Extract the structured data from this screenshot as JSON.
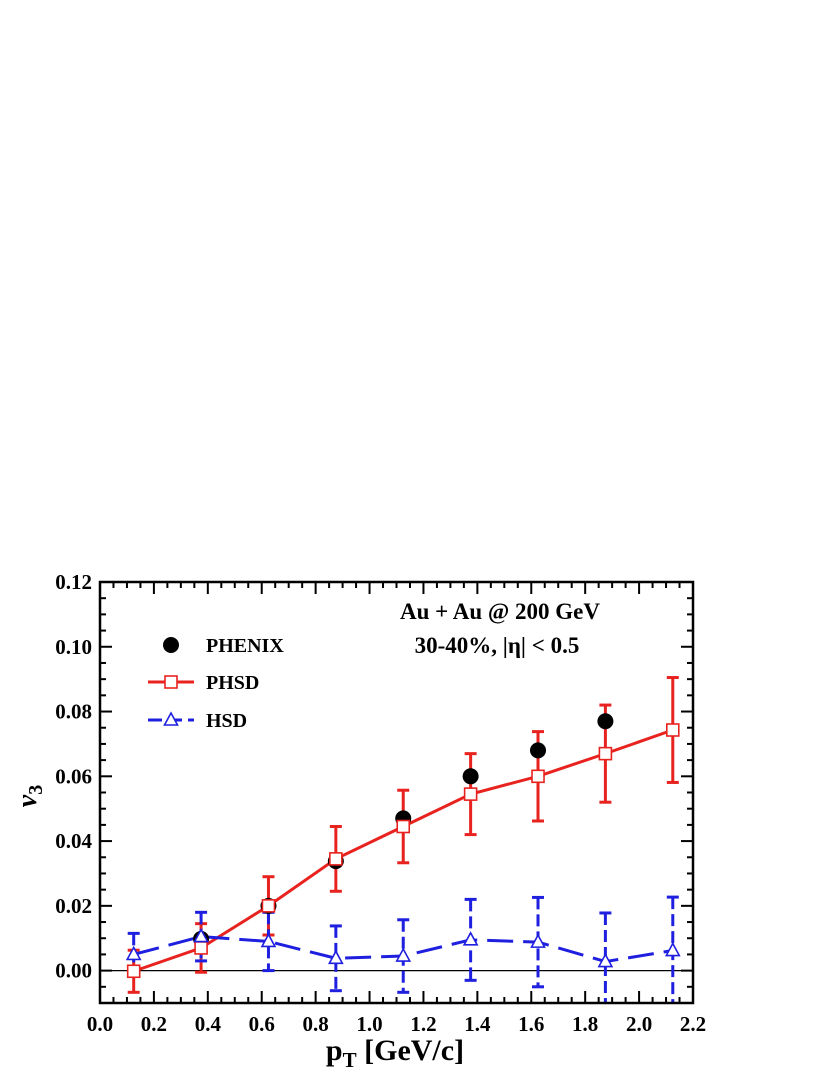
{
  "chart_data": {
    "type": "line",
    "title": "",
    "xlabel": "p",
    "xlabel_sub": "T",
    "xlabel_unit": " [GeV/c]",
    "ylabel": "v",
    "ylabel_sub": "3",
    "xlim": [
      0.0,
      2.2
    ],
    "ylim": [
      -0.01,
      0.12
    ],
    "xticks": [
      0.0,
      0.2,
      0.4,
      0.6,
      0.8,
      1.0,
      1.2,
      1.4,
      1.6,
      1.8,
      2.0,
      2.2
    ],
    "xtick_labels": [
      "0.0",
      "0.2",
      "0.4",
      "0.6",
      "0.8",
      "1.0",
      "1.2",
      "1.4",
      "1.6",
      "1.8",
      "2.0",
      "2.2"
    ],
    "yticks": [
      0.0,
      0.02,
      0.04,
      0.06,
      0.08,
      0.1,
      0.12
    ],
    "ytick_labels": [
      "0.00",
      "0.02",
      "0.04",
      "0.06",
      "0.08",
      "0.10",
      "0.12"
    ],
    "annotations": [
      "Au + Au @ 200 GeV",
      "30-40%, |η| < 0.5"
    ],
    "legend_position": "top-left",
    "series": [
      {
        "name": "PHENIX",
        "style": "markers",
        "marker": "filled-circle",
        "color": "#000000",
        "x": [
          0.375,
          0.625,
          0.875,
          1.125,
          1.375,
          1.625,
          1.875
        ],
        "y": [
          0.0098,
          0.02,
          0.0338,
          0.047,
          0.06,
          0.068,
          0.077
        ]
      },
      {
        "name": "PHSD",
        "style": "solid",
        "marker": "open-square",
        "color": "#e8231f",
        "x": [
          0.125,
          0.375,
          0.625,
          0.875,
          1.125,
          1.375,
          1.625,
          1.875,
          2.125
        ],
        "y": [
          -0.0002,
          0.007,
          0.02,
          0.0345,
          0.0445,
          0.0545,
          0.06,
          0.067,
          0.0743
        ],
        "err": [
          0.0065,
          0.0075,
          0.009,
          0.01,
          0.0112,
          0.0125,
          0.0138,
          0.015,
          0.0162
        ]
      },
      {
        "name": "HSD",
        "style": "dashed",
        "marker": "open-triangle",
        "color": "#1f1fe0",
        "x": [
          0.125,
          0.375,
          0.625,
          0.875,
          1.125,
          1.375,
          1.625,
          1.875,
          2.125
        ],
        "y": [
          0.005,
          0.0105,
          0.009,
          0.0038,
          0.0045,
          0.0095,
          0.0088,
          0.0028,
          0.0062
        ],
        "err": [
          0.0065,
          0.0075,
          0.009,
          0.01,
          0.0112,
          0.0125,
          0.0138,
          0.015,
          0.0165
        ]
      }
    ]
  }
}
